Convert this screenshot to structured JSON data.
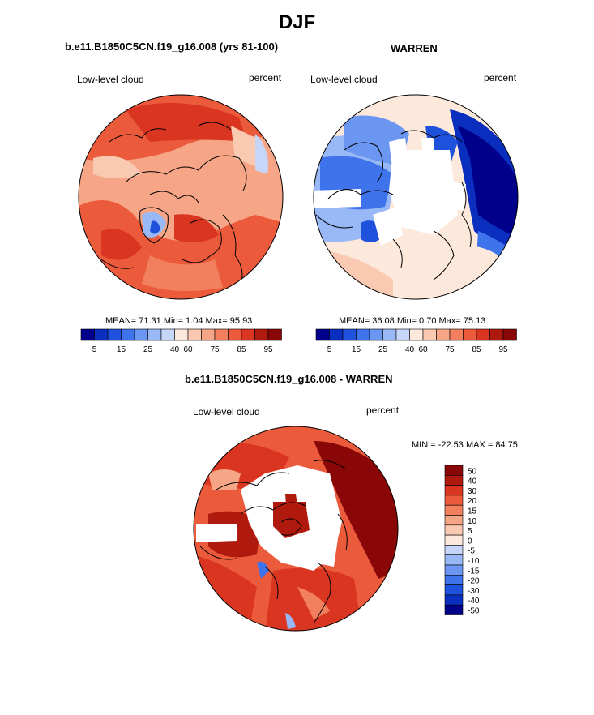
{
  "title": "DJF",
  "panels": {
    "left": {
      "title": "b.e11.B1850C5CN.f19_g16.008 (yrs 81-100)",
      "left_label": "Low-level cloud",
      "right_label": "percent",
      "stats": "MEAN=  71.31  Min=   1.04  Max=  95.93"
    },
    "right": {
      "title": "WARREN",
      "left_label": "Low-level cloud",
      "right_label": "percent",
      "stats": "MEAN=  36.08  Min=   0.70  Max=  75.13"
    },
    "diff": {
      "title": "b.e11.B1850C5CN.f19_g16.008 - WARREN",
      "left_label": "Low-level cloud",
      "right_label": "percent",
      "stats": "MIN = -22.53 MAX =  84.75"
    }
  },
  "colorbar_abs": {
    "labels": [
      "5",
      "15",
      "25",
      "40",
      "60",
      "75",
      "85",
      "95"
    ],
    "colors": [
      "#00008b",
      "#0a2fbf",
      "#1f52dc",
      "#3f73ec",
      "#6b97f2",
      "#98b8f6",
      "#c5d6f9",
      "#fde8dc",
      "#f9c9b1",
      "#f6a586",
      "#f2805e",
      "#ec5a3c",
      "#d93521",
      "#b01a0e",
      "#8a0707"
    ]
  },
  "colorbar_diff": {
    "labels": [
      "50",
      "40",
      "30",
      "20",
      "15",
      "10",
      "5",
      "0",
      "-5",
      "-10",
      "-15",
      "-20",
      "-30",
      "-40",
      "-50"
    ],
    "colors": [
      "#8a0707",
      "#b01a0e",
      "#d93521",
      "#ec5a3c",
      "#f2805e",
      "#f6a586",
      "#f9c9b1",
      "#fde8dc",
      "#c5d6f9",
      "#98b8f6",
      "#6b97f2",
      "#3f73ec",
      "#1f52dc",
      "#0a2fbf",
      "#00008b"
    ]
  }
}
